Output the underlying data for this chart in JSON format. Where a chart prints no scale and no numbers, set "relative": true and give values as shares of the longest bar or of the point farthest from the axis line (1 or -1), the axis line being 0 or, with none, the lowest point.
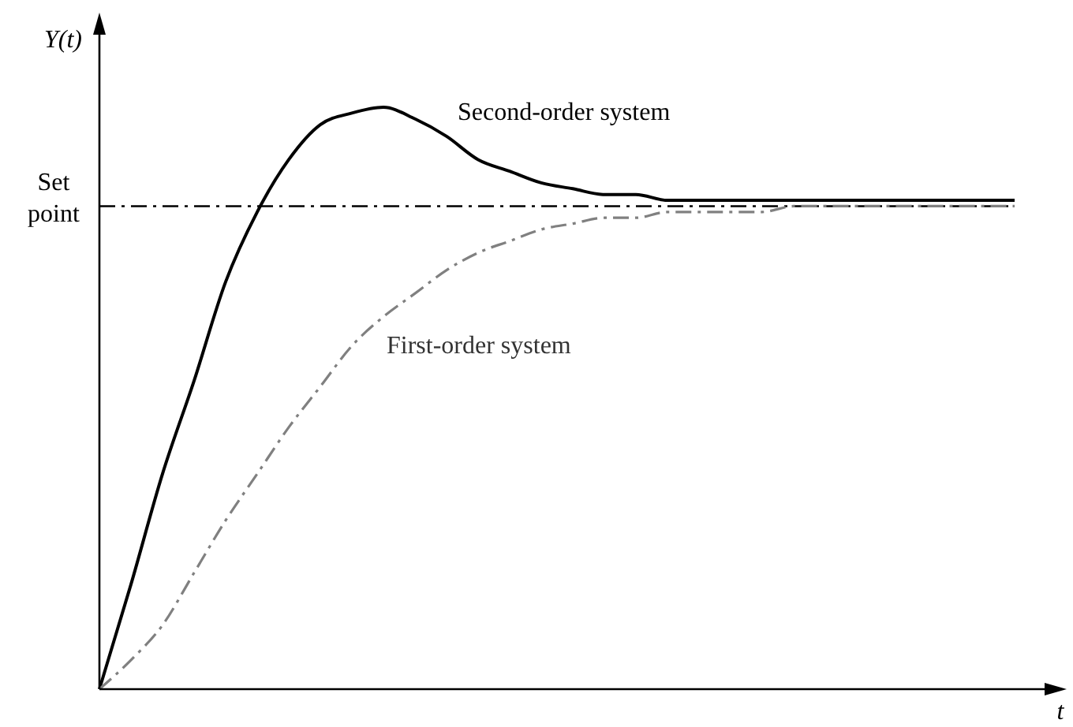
{
  "chart_data": {
    "type": "line",
    "relative": true,
    "xlabel": "t",
    "ylabel": "Y(t)",
    "categories": [
      null,
      null,
      null,
      null,
      null,
      null,
      null,
      null,
      null,
      null,
      null,
      null,
      null,
      null,
      null,
      null,
      null,
      null,
      null,
      null,
      null,
      null,
      null,
      null,
      null,
      null,
      null,
      null,
      null,
      null
    ],
    "series": [
      {
        "name": "Second-order system",
        "color": "#000000",
        "line_style": "solid",
        "values": [
          0,
          0.18,
          0.37,
          0.53,
          0.7,
          0.82,
          0.91,
          0.97,
          0.99,
          1,
          0.98,
          0.95,
          0.91,
          0.89,
          0.87,
          0.86,
          0.85,
          0.85,
          0.84,
          0.84,
          0.84,
          0.84,
          0.84,
          0.84,
          0.84,
          0.84,
          0.84,
          0.84,
          0.84,
          0.84
        ]
      },
      {
        "name": "First-order system",
        "color": "#808080",
        "line_style": "dashed",
        "values": [
          0,
          0.05,
          0.11,
          0.2,
          0.29,
          0.37,
          0.45,
          0.52,
          0.59,
          0.64,
          0.68,
          0.72,
          0.75,
          0.77,
          0.79,
          0.8,
          0.81,
          0.81,
          0.82,
          0.82,
          0.82,
          0.82,
          0.83,
          0.83,
          0.83,
          0.83,
          0.83,
          0.83,
          0.83,
          0.83
        ]
      }
    ],
    "ref_lines": [
      {
        "axis": "y",
        "value": 0.83,
        "label": "Set point",
        "color": "#000000",
        "line_style": "dashed"
      }
    ]
  }
}
